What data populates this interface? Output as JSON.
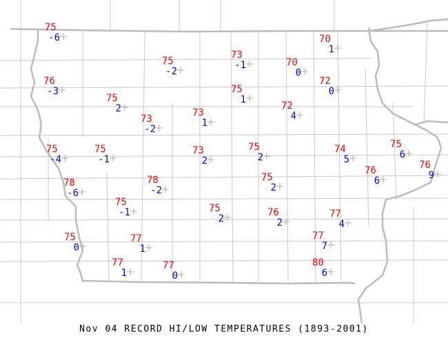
{
  "title": "Nov 04 RECORD HI/LOW TEMPERATURES (1893-2001)",
  "colors": {
    "record_high": "#ff0000",
    "record_low": "#0000ff",
    "station_marker": "#aaaaaa",
    "boundaries": "#c0c0c0"
  },
  "stations": [
    {
      "hi": "75",
      "lo": "-6"
    },
    {
      "hi": "76",
      "lo": "-3"
    },
    {
      "hi": "75",
      "lo": "-2"
    },
    {
      "hi": "75",
      "lo": "2"
    },
    {
      "hi": "73",
      "lo": "-2"
    },
    {
      "hi": "73",
      "lo": "1"
    },
    {
      "hi": "73",
      "lo": "-1"
    },
    {
      "hi": "75",
      "lo": "1"
    },
    {
      "hi": "70",
      "lo": "0"
    },
    {
      "hi": "70",
      "lo": "1"
    },
    {
      "hi": "72",
      "lo": "0"
    },
    {
      "hi": "72",
      "lo": "4"
    },
    {
      "hi": "75",
      "lo": "-4"
    },
    {
      "hi": "75",
      "lo": "-1"
    },
    {
      "hi": "73",
      "lo": "2"
    },
    {
      "hi": "78",
      "lo": "-6"
    },
    {
      "hi": "78",
      "lo": "-2"
    },
    {
      "hi": "75",
      "lo": "-1"
    },
    {
      "hi": "75",
      "lo": "2"
    },
    {
      "hi": "75",
      "lo": "2"
    },
    {
      "hi": "74",
      "lo": "5"
    },
    {
      "hi": "75",
      "lo": "6"
    },
    {
      "hi": "76",
      "lo": "6"
    },
    {
      "hi": "76",
      "lo": "9"
    },
    {
      "hi": "75",
      "lo": "2"
    },
    {
      "hi": "76",
      "lo": "2"
    },
    {
      "hi": "77",
      "lo": "4"
    },
    {
      "hi": "75",
      "lo": "0"
    },
    {
      "hi": "77",
      "lo": "1"
    },
    {
      "hi": "77",
      "lo": "1"
    },
    {
      "hi": "77",
      "lo": "0"
    },
    {
      "hi": "77",
      "lo": "7"
    },
    {
      "hi": "80",
      "lo": "6"
    }
  ]
}
